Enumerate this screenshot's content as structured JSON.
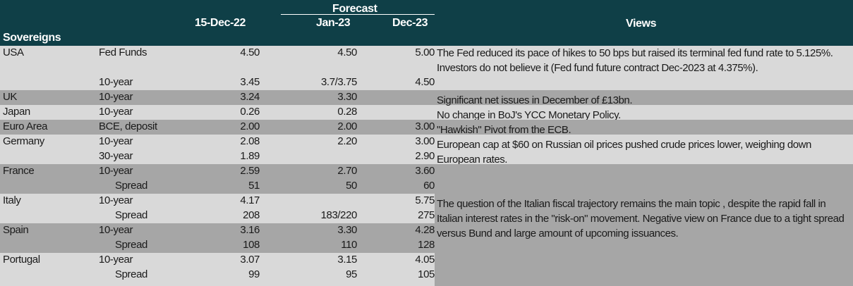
{
  "header": {
    "sovereigns": "Sovereigns",
    "date_col": "15-Dec-22",
    "forecast": "Forecast",
    "jan_col": "Jan-23",
    "dec_col": "Dec-23",
    "views": "Views"
  },
  "colors": {
    "header_bg": "#0f3f47",
    "light_row": "#d9d9d9",
    "dark_row": "#a6a6a6",
    "header_text": "#ffffff"
  },
  "rows": [
    {
      "country": "USA",
      "instrument": "Fed Funds",
      "date": "4.50",
      "jan": "4.50",
      "dec": "5.00"
    },
    {
      "country": "",
      "instrument": "10-year",
      "date": "3.45",
      "jan": "3.7/3.75",
      "dec": "4.50"
    },
    {
      "country": "UK",
      "instrument": "10-year",
      "date": "3.24",
      "jan": "3.30",
      "dec": ""
    },
    {
      "country": "Japan",
      "instrument": "10-year",
      "date": "0.26",
      "jan": "0.28",
      "dec": ""
    },
    {
      "country": "Euro Area",
      "instrument": "BCE, deposit",
      "date": "2.00",
      "jan": "2.00",
      "dec": "3.00"
    },
    {
      "country": "Germany",
      "instrument": "10-year",
      "date": "2.08",
      "jan": "2.20",
      "dec": "3.00"
    },
    {
      "country": "",
      "instrument": "30-year",
      "date": "1.89",
      "jan": "",
      "dec": "2.90"
    },
    {
      "country": "France",
      "instrument": "10-year",
      "date": "2.59",
      "jan": "2.70",
      "dec": "3.60"
    },
    {
      "country": "",
      "instrument": "Spread",
      "date": "51",
      "jan": "50",
      "dec": "60"
    },
    {
      "country": "Italy",
      "instrument": "10-year",
      "date": "4.17",
      "jan": "",
      "dec": "5.75"
    },
    {
      "country": "",
      "instrument": "Spread",
      "date": "208",
      "jan": "183/220",
      "dec": "275"
    },
    {
      "country": "Spain",
      "instrument": "10-year",
      "date": "3.16",
      "jan": "3.30",
      "dec": "4.28"
    },
    {
      "country": "",
      "instrument": "Spread",
      "date": "108",
      "jan": "110",
      "dec": "128"
    },
    {
      "country": "Portugal",
      "instrument": "10-year",
      "date": "3.07",
      "jan": "3.15",
      "dec": "4.05"
    },
    {
      "country": "",
      "instrument": "Spread",
      "date": "99",
      "jan": "95",
      "dec": "105"
    }
  ],
  "views": {
    "usa": "The Fed reduced its pace of hikes  to 50 bps but raised its terminal fed fund rate to 5.125%.  Investors do not believe it (Fed fund future contract Dec-2023 at 4.375%).",
    "uk": "Significant net issues in December of £13bn.",
    "japan": "No change in BoJ's YCC Monetary Policy.",
    "euro": "\"Hawkish\" Pivot from the ECB.",
    "germany": "European cap at $60 on Russian oil prices pushed crude prices lower, weighing down European rates.",
    "periphery": "The question of the Italian fiscal trajectory remains the main topic , despite the rapid fall in Italian interest rates in the \"risk-on\" movement. Negative view on France due to a tight spread versus Bund and large amount of upcoming issuances."
  }
}
